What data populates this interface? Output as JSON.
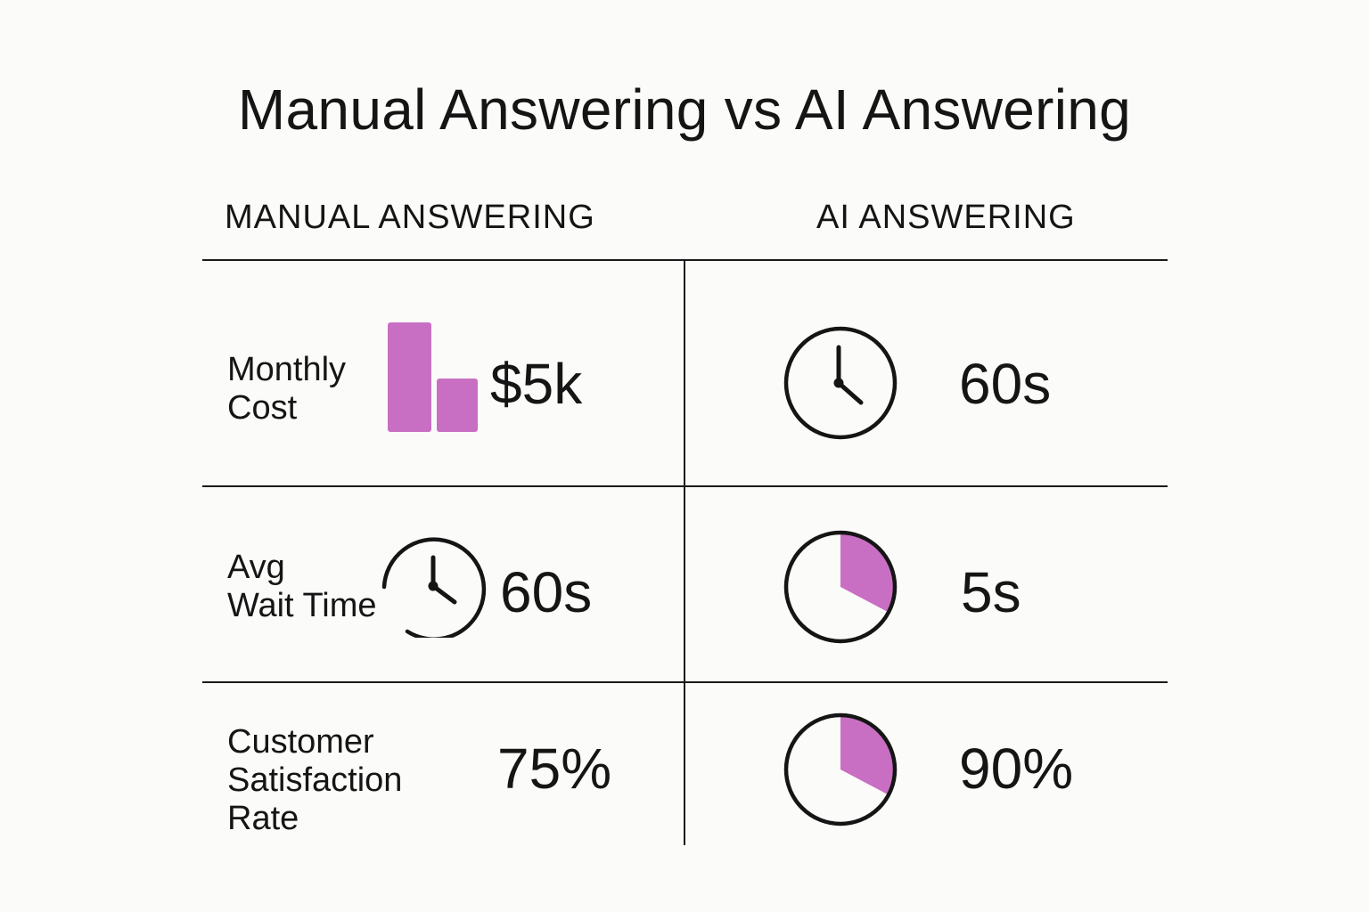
{
  "title": "Manual Answering vs AI Answering",
  "columns": {
    "manual": "MANUAL ANSWERING",
    "ai": "AI ANSWERING"
  },
  "colors": {
    "accent": "#c96fc3",
    "ink": "#151515",
    "background": "#fbfbf9"
  },
  "rows": [
    {
      "label_lines": [
        "Monthly",
        "Cost"
      ],
      "manual": {
        "value": "$5k",
        "icon": "bar-chart-icon"
      },
      "ai": {
        "value": "60s",
        "icon": "clock-icon"
      }
    },
    {
      "label_lines": [
        "Avg",
        "Wait Time"
      ],
      "manual": {
        "value": "60s",
        "icon": "clock-icon"
      },
      "ai": {
        "value": "5s",
        "icon": "pie-chart-icon"
      }
    },
    {
      "label_lines": [
        "Customer",
        "Satisfaction",
        "Rate"
      ],
      "manual": {
        "value": "75%"
      },
      "ai": {
        "value": "90%",
        "icon": "pie-chart-icon"
      }
    }
  ]
}
